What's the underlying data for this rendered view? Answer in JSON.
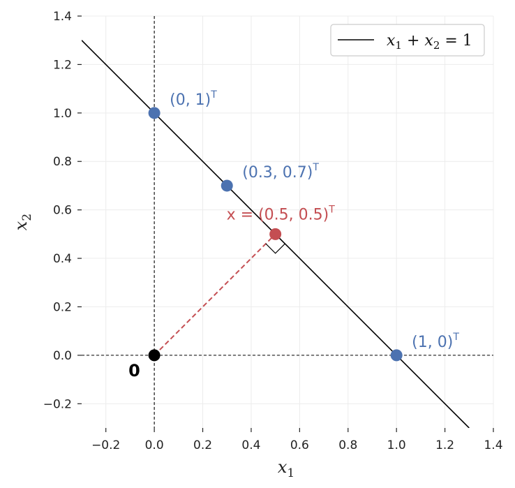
{
  "chart_data": {
    "type": "line",
    "xlim": [
      -0.3,
      1.4
    ],
    "ylim": [
      -0.3,
      1.4
    ],
    "xticks": [
      "−0.2",
      "0.0",
      "0.2",
      "0.4",
      "0.6",
      "0.8",
      "1.0",
      "1.2",
      "1.4"
    ],
    "xtick_values": [
      -0.2,
      0.0,
      0.2,
      0.4,
      0.6,
      0.8,
      1.0,
      1.2,
      1.4
    ],
    "yticks": [
      "−0.2",
      "0.0",
      "0.2",
      "0.4",
      "0.6",
      "0.8",
      "1.0",
      "1.2",
      "1.4"
    ],
    "ytick_values": [
      -0.2,
      0.0,
      0.2,
      0.4,
      0.6,
      0.8,
      1.0,
      1.2,
      1.4
    ],
    "xlabel": {
      "base": "x",
      "sub": "1"
    },
    "ylabel": {
      "base": "x",
      "sub": "2"
    },
    "grid": true,
    "legend_position": "top-right",
    "line": {
      "legend": {
        "a": "x",
        "a_sub": "1",
        "plus": " + ",
        "b": "x",
        "b_sub": "2",
        "eq": " = 1"
      },
      "x": [
        -0.3,
        1.3
      ],
      "y": [
        1.3,
        -0.3
      ],
      "color": "#000000"
    },
    "points": [
      {
        "x": 0.0,
        "y": 1.0,
        "color": "#4c72b0",
        "label": "(0,  1)",
        "sup": "T"
      },
      {
        "x": 0.3,
        "y": 0.7,
        "color": "#4c72b0",
        "label": "(0.3,  0.7)",
        "sup": "T"
      },
      {
        "x": 1.0,
        "y": 0.0,
        "color": "#4c72b0",
        "label": "(1,  0)",
        "sup": "T"
      },
      {
        "x": 0.5,
        "y": 0.5,
        "color": "#c44e52",
        "label": "x = (0.5,  0.5)",
        "sup": "T"
      }
    ],
    "origin": {
      "x": 0.0,
      "y": 0.0,
      "label": "0",
      "color": "#000000"
    },
    "projection": {
      "from": [
        0.0,
        0.0
      ],
      "to": [
        0.5,
        0.5
      ],
      "color": "#c44e52"
    }
  }
}
